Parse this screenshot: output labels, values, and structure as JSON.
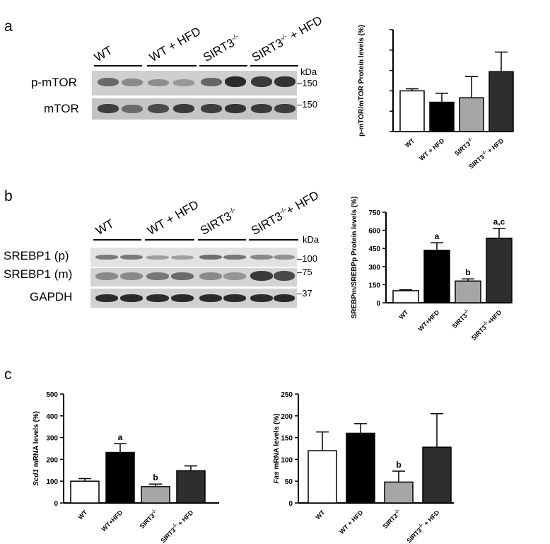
{
  "panels": {
    "a": "a",
    "b": "b",
    "c": "c"
  },
  "blot_a": {
    "groups": [
      "WT",
      "WT + HFD",
      "SIRT3",
      "SIRT3"
    ],
    "groups_sup": [
      "",
      "",
      "-/-",
      "-/-"
    ],
    "groups_suffix": [
      "",
      "",
      "",
      " + HFD"
    ],
    "rows": [
      "p-mTOR",
      "mTOR"
    ],
    "kda_label": "kDa",
    "markers": [
      "150",
      "150"
    ]
  },
  "blot_b": {
    "groups": [
      "WT",
      "WT + HFD",
      "SIRT3",
      "SIRT3"
    ],
    "groups_sup": [
      "",
      "",
      "-/-",
      "-/-"
    ],
    "groups_suffix": [
      "",
      "",
      "",
      "+ HFD"
    ],
    "rows": [
      "SREBP1 (p)",
      "SREBP1 (m)",
      "GAPDH"
    ],
    "kda_label": "kDa",
    "markers": [
      "100",
      "75",
      "37"
    ]
  },
  "chart_data": [
    {
      "panel": "a",
      "type": "bar",
      "categories": [
        "WT",
        "WT + HFD",
        "SIRT3-/-",
        "SIRT3-/- + HFD"
      ],
      "values": [
        100,
        72,
        83,
        147
      ],
      "errors": [
        5,
        22,
        52,
        48
      ],
      "ylabel": "p-mTOR/mTOR Protein levels (%)",
      "ylim": [
        0,
        250
      ],
      "yticks": [],
      "annotations": [
        "",
        "",
        "",
        ""
      ],
      "colors": [
        "#ffffff",
        "#000000",
        "#a6a6a6",
        "#2e2e2e"
      ]
    },
    {
      "panel": "b",
      "type": "bar",
      "categories": [
        "WT",
        "WT+HFD",
        "SIRT3-/-",
        "SIRT3-/-+HFD"
      ],
      "values": [
        100,
        435,
        180,
        535
      ],
      "errors": [
        8,
        62,
        18,
        82
      ],
      "ylabel": "SREBPm/SREBPp Protein levels (%)",
      "ylim": [
        0,
        750
      ],
      "yticks": [
        "0",
        "150",
        "300",
        "450",
        "600",
        "750"
      ],
      "annotations": [
        "",
        "a",
        "b",
        "a,c"
      ],
      "colors": [
        "#ffffff",
        "#000000",
        "#a6a6a6",
        "#2e2e2e"
      ]
    },
    {
      "panel": "c-left",
      "type": "bar",
      "categories": [
        "WT",
        "WT+HFD",
        "SIRT3-/-",
        "SIRT3-/- + HFD"
      ],
      "values": [
        100,
        232,
        75,
        148
      ],
      "errors": [
        12,
        40,
        12,
        22
      ],
      "ylabel_italic": "Scd1",
      "ylabel": " mRNA levels (%)",
      "ylim": [
        0,
        500
      ],
      "yticks": [
        "0",
        "100",
        "200",
        "300",
        "400",
        "500"
      ],
      "annotations": [
        "",
        "a",
        "b",
        ""
      ],
      "colors": [
        "#ffffff",
        "#000000",
        "#a6a6a6",
        "#2e2e2e"
      ]
    },
    {
      "panel": "c-right",
      "type": "bar",
      "categories": [
        "WT",
        "WT + HFD",
        "SIRT3-/-",
        "SIRT3-/- + HFD"
      ],
      "values": [
        120,
        160,
        48,
        128
      ],
      "errors": [
        43,
        22,
        25,
        77
      ],
      "ylabel_italic": "Fas",
      "ylabel": " mRNA levels (%)",
      "ylim": [
        0,
        250
      ],
      "yticks": [
        "0",
        "50",
        "100",
        "150",
        "200",
        "250"
      ],
      "annotations": [
        "",
        "",
        "b",
        ""
      ],
      "colors": [
        "#ffffff",
        "#000000",
        "#a6a6a6",
        "#2e2e2e"
      ]
    }
  ]
}
